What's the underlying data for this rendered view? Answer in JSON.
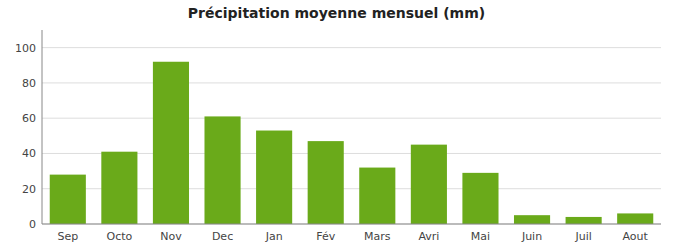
{
  "chart_data": {
    "type": "bar",
    "title": "Précipitation moyenne mensuel  (mm)",
    "categories": [
      "Sep",
      "Octo",
      "Nov",
      "Dec",
      "Jan",
      "Fév",
      "Mars",
      "Avri",
      "Mai",
      "Juin",
      "Juil",
      "Aout"
    ],
    "values": [
      28,
      41,
      92,
      61,
      53,
      47,
      32,
      45,
      29,
      5,
      4,
      6
    ],
    "color": "#6aaa1a",
    "ylim": [
      0,
      110
    ],
    "yticks": [
      0,
      20,
      40,
      60,
      80,
      100
    ],
    "grid": true
  }
}
